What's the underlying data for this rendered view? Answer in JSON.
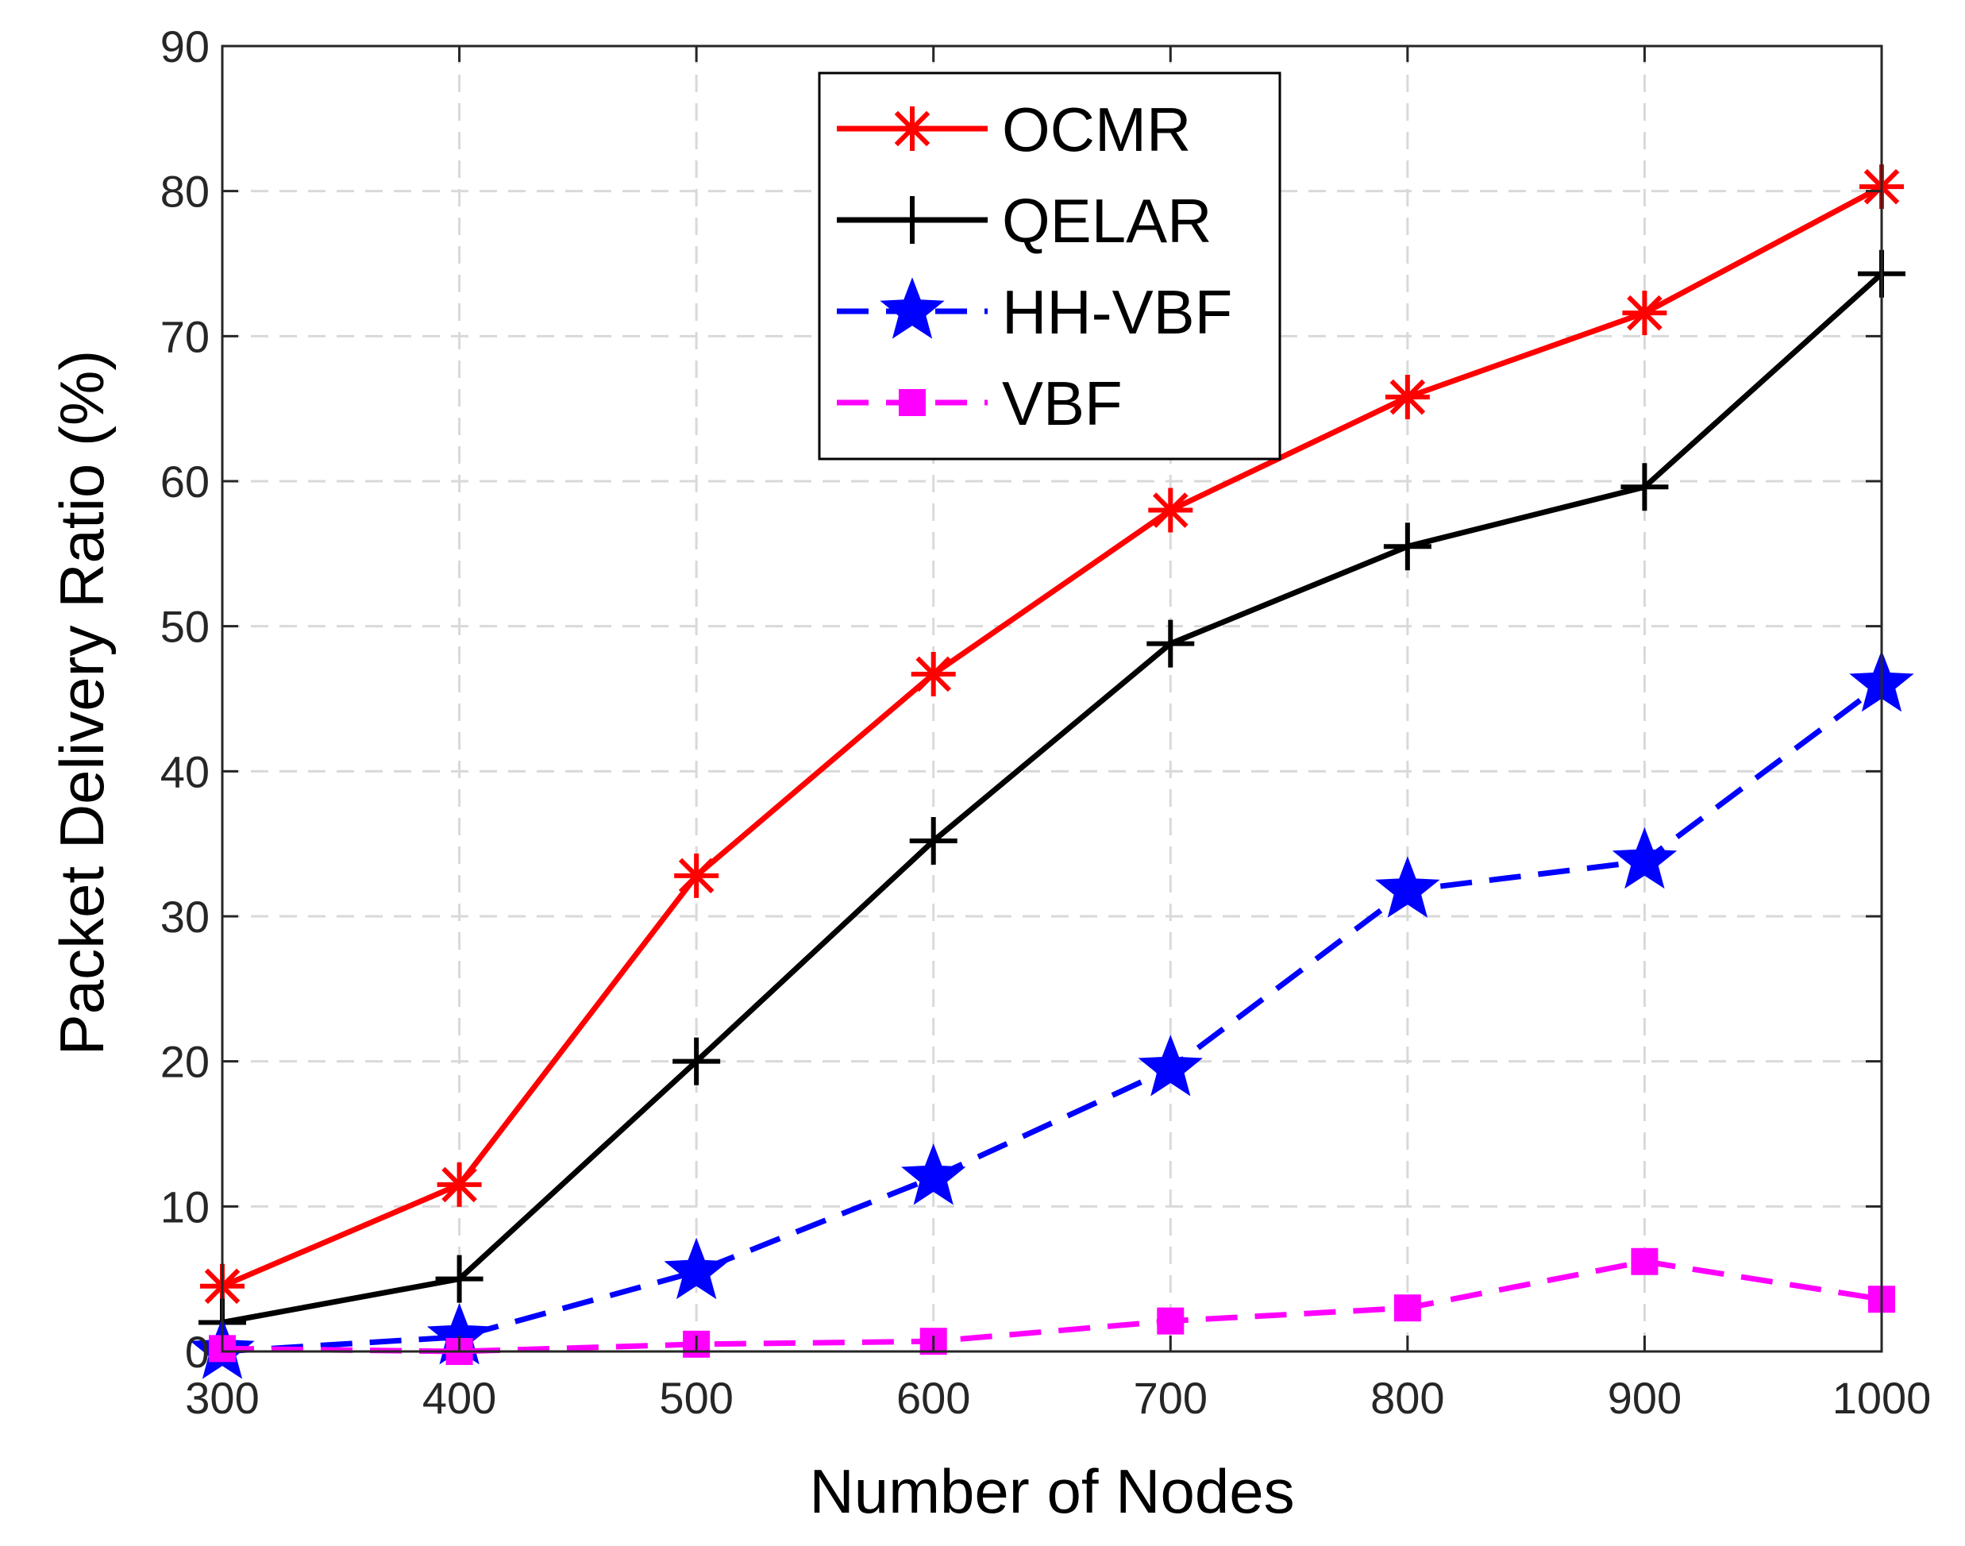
{
  "chart_data": {
    "type": "line",
    "title": "",
    "xlabel": "Number of Nodes",
    "ylabel": "Packet Delivery Ratio (%)",
    "x": [
      300,
      400,
      500,
      600,
      700,
      800,
      900,
      1000
    ],
    "xlim": [
      300,
      1000
    ],
    "ylim": [
      0,
      90
    ],
    "xticks": [
      300,
      400,
      500,
      600,
      700,
      800,
      900,
      1000
    ],
    "yticks": [
      0,
      10,
      20,
      30,
      40,
      50,
      60,
      70,
      80,
      90
    ],
    "grid": true,
    "legend_position": "top-center",
    "series": [
      {
        "name": "OCMR",
        "values": [
          4.5,
          11.5,
          32.8,
          46.7,
          58.0,
          65.8,
          71.6,
          80.3
        ],
        "color": "#ff0000",
        "marker": "asterisk",
        "line": "solid"
      },
      {
        "name": "QELAR",
        "values": [
          2.0,
          5.0,
          20.0,
          35.2,
          48.8,
          55.5,
          59.6,
          74.3
        ],
        "color": "#000000",
        "marker": "plus",
        "line": "solid"
      },
      {
        "name": "HH-VBF",
        "values": [
          0.0,
          1.0,
          5.5,
          12.0,
          19.5,
          31.8,
          33.8,
          46.0
        ],
        "color": "#0000ff",
        "marker": "star",
        "line": "dashed"
      },
      {
        "name": "VBF",
        "values": [
          0.2,
          0.0,
          0.5,
          0.7,
          2.1,
          3.0,
          6.2,
          3.6
        ],
        "color": "#ff00ff",
        "marker": "square",
        "line": "dashed"
      }
    ]
  }
}
